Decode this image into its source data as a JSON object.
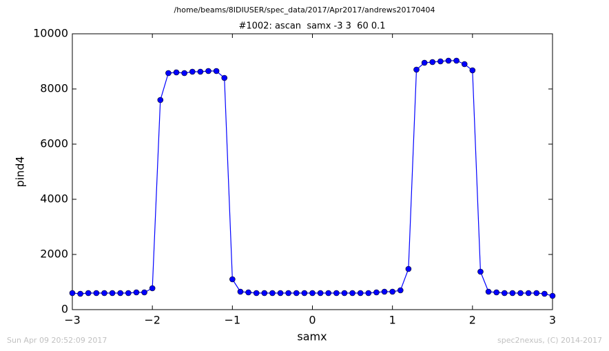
{
  "chart_data": {
    "type": "line",
    "suptitle": "/home/beams/8IDIUSER/spec_data/2017/Apr2017/andrews20170404",
    "title": "#1002: ascan  samx -3 3  60 0.1",
    "xlabel": "samx",
    "ylabel": "pind4",
    "timestamp": "Sun Apr 09 20:52:09 2017",
    "credit": "spec2nexus, (C) 2014-2017",
    "x": [
      -3.0,
      -2.9,
      -2.8,
      -2.7,
      -2.6,
      -2.5,
      -2.4,
      -2.3,
      -2.2,
      -2.1,
      -2.0,
      -1.9,
      -1.8,
      -1.7,
      -1.6,
      -1.5,
      -1.4,
      -1.3,
      -1.2,
      -1.1,
      -1.0,
      -0.9,
      -0.8,
      -0.7,
      -0.6,
      -0.5,
      -0.4,
      -0.3,
      -0.2,
      -0.1,
      0.0,
      0.1,
      0.2,
      0.3,
      0.4,
      0.5,
      0.6,
      0.7,
      0.8,
      0.9,
      1.0,
      1.1,
      1.2,
      1.3,
      1.4,
      1.5,
      1.6,
      1.7,
      1.8,
      1.9,
      2.0,
      2.1,
      2.2,
      2.3,
      2.4,
      2.5,
      2.6,
      2.7,
      2.8,
      2.9,
      3.0
    ],
    "series": [
      {
        "name": "pind4",
        "color": "#0000ff",
        "values": [
          600,
          575,
          600,
          600,
          600,
          600,
          600,
          600,
          625,
          625,
          775,
          7600,
          8575,
          8600,
          8575,
          8625,
          8625,
          8650,
          8650,
          8400,
          1100,
          650,
          625,
          600,
          600,
          600,
          600,
          600,
          600,
          600,
          600,
          600,
          600,
          600,
          600,
          600,
          600,
          600,
          625,
          650,
          650,
          700,
          1475,
          8700,
          8950,
          8975,
          9000,
          9025,
          9025,
          8900,
          8675,
          1375,
          650,
          625,
          600,
          600,
          600,
          600,
          600,
          575,
          500
        ]
      }
    ],
    "xlim": [
      -3,
      3
    ],
    "xticks": [
      {
        "value": -3,
        "label": "−3"
      },
      {
        "value": -2,
        "label": "−2"
      },
      {
        "value": -1,
        "label": "−1"
      },
      0,
      1,
      2,
      3
    ],
    "ylim": [
      0,
      10000
    ],
    "yticks": [
      0,
      2000,
      4000,
      6000,
      8000,
      10000
    ]
  }
}
